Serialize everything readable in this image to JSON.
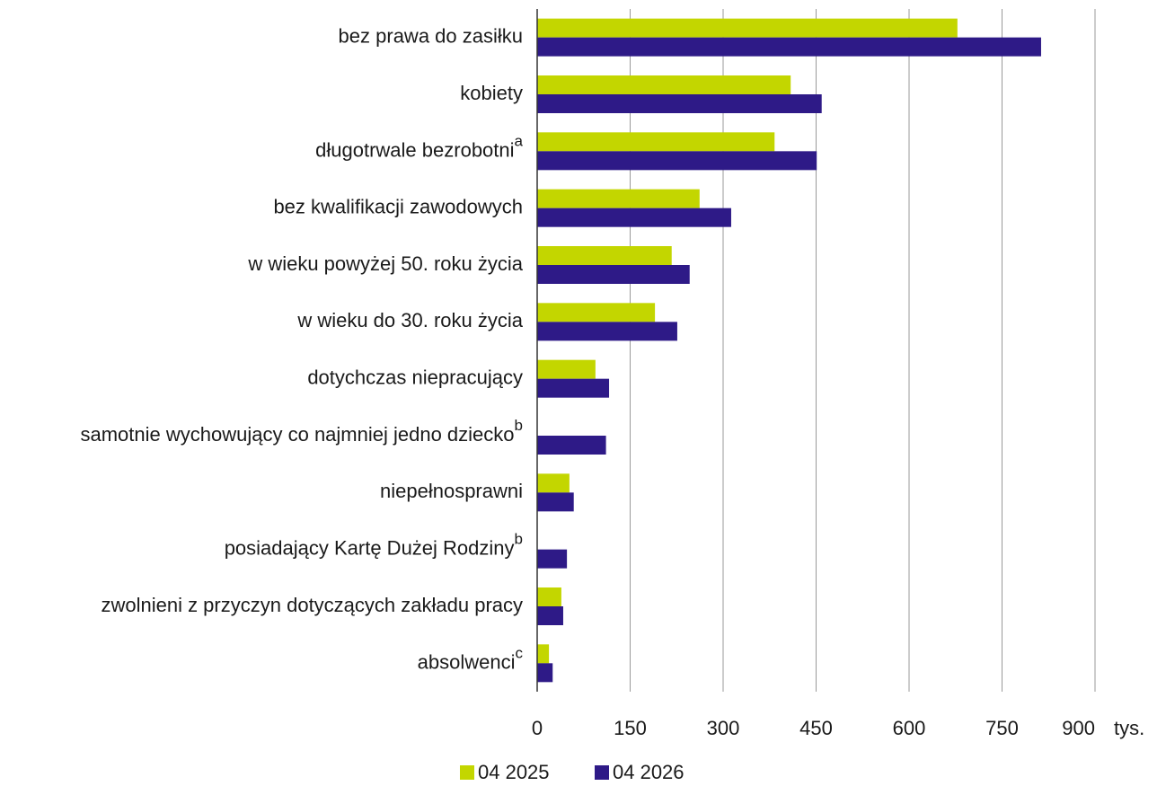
{
  "chart_data": {
    "type": "hbar",
    "categories": [
      "bez prawa do zasiłku",
      "kobiety",
      "długotrwale bezrobotni",
      "bez kwalifikacji zawodowych",
      "w wieku powyżej 50. roku życia",
      "w wieku do 30. roku życia",
      "dotychczas niepracujący",
      "samotnie wychowujący co najmniej jedno dziecko",
      "niepełnosprawni",
      "posiadający Kartę Dużej Rodziny",
      "zwolnieni z przyczyn dotyczących zakładu pracy",
      "absolwenci"
    ],
    "category_superscripts": [
      null,
      null,
      "a",
      null,
      null,
      null,
      null,
      "b",
      null,
      "b",
      null,
      "c"
    ],
    "series": [
      {
        "name": "04 2025",
        "color": "#c3d600",
        "values": [
          678,
          409,
          383,
          262,
          217,
          190,
          94,
          null,
          52,
          null,
          39,
          19
        ]
      },
      {
        "name": "04 2026",
        "color": "#2e1a87",
        "values": [
          813,
          459,
          451,
          313,
          246,
          226,
          116,
          111,
          59,
          48,
          42,
          25
        ]
      }
    ],
    "xlabel": "tys.",
    "xlim": [
      0,
      900
    ],
    "xticks": [
      0,
      150,
      300,
      450,
      600,
      750,
      900
    ],
    "grid": true
  }
}
